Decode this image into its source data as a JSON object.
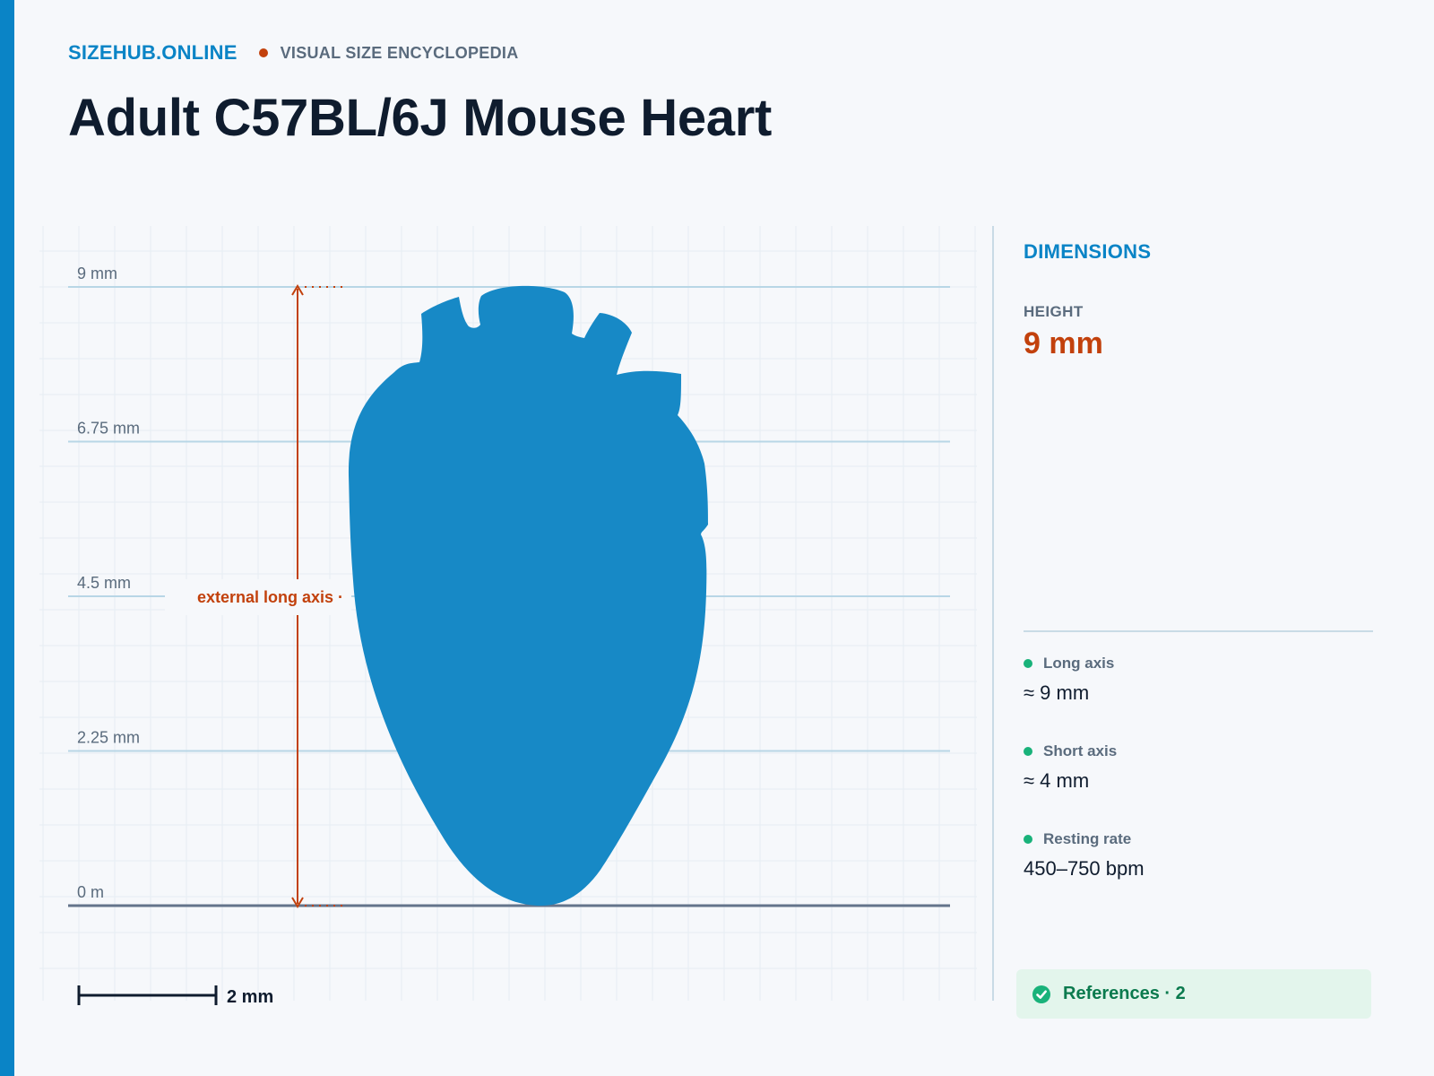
{
  "site": {
    "brand": "SIZEHUB.ONLINE",
    "tagline": "VISUAL SIZE ENCYCLOPEDIA"
  },
  "page_title": "Adult C57BL/6J Mouse Heart",
  "diagram": {
    "height_ticks": [
      "0 m",
      "2.25 mm",
      "4.5 mm",
      "6.75 mm",
      "9 mm"
    ],
    "measure_label": "external long axis ·",
    "scale_bar_label": "2 mm",
    "subject_height_mm": 9,
    "scale_bar_mm": 2
  },
  "panel": {
    "title": "DIMENSIONS",
    "height_label": "HEIGHT",
    "height_value": "9 mm",
    "stats": [
      {
        "label": "Long axis",
        "value": "≈ 9 mm"
      },
      {
        "label": "Short axis",
        "value": "≈ 4 mm"
      },
      {
        "label": "Resting rate",
        "value": "450–750 bpm"
      }
    ]
  },
  "references": {
    "label": "References · 2"
  },
  "colors": {
    "accent": "#0a84c6",
    "highlight": "#c2410c",
    "silhouette": "#1789c6",
    "success": "#19b27a"
  },
  "icons": {
    "references": "check-circle-icon"
  }
}
